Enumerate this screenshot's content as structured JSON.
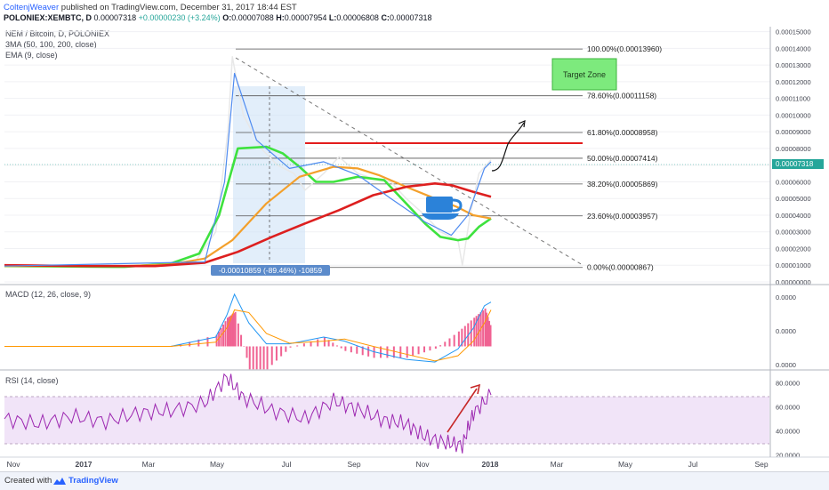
{
  "header": {
    "author": "ColtenjWeaver",
    "published_text": "published on TradingView.com, December 31, 2017 18:44 EST",
    "symbol": "POLONIEX:XEMBTC, D",
    "last": "0.00007318",
    "change": "+0.00000230 (+3.24%)",
    "o_label": "O:",
    "open": "0.00007088",
    "h_label": "H:",
    "high": "0.00007954",
    "l_label": "L:",
    "low": "0.00006808",
    "c_label": "C:",
    "close": "0.00007318"
  },
  "panes": {
    "price": {
      "title": "NEM / Bitcoin, D, POLONIEX",
      "indicator1": "3MA (50, 100, 200, close)",
      "indicator2": "EMA (9, close)"
    },
    "macd": {
      "title": "MACD (12, 26, close, 9)"
    },
    "rsi": {
      "title": "RSI (14, close)"
    }
  },
  "annotations": {
    "target_zone": "Target Zone",
    "measure_label": "-0.00010859 (-89.46%) -10859",
    "fib_levels": [
      {
        "label": "100.00%(0.00013960)",
        "value": 0.0001396
      },
      {
        "label": "78.60%(0.00011158)",
        "value": 0.00011158
      },
      {
        "label": "61.80%(0.00008958)",
        "value": 8.958e-05
      },
      {
        "label": "50.00%(0.00007414)",
        "value": 7.414e-05
      },
      {
        "label": "38.20%(0.00005869)",
        "value": 5.869e-05
      },
      {
        "label": "23.60%(0.00003957)",
        "value": 3.957e-05
      },
      {
        "label": "0.00%(0.00000867)",
        "value": 8.67e-06
      }
    ],
    "current_price_tag": "0.00007318"
  },
  "chart_data": [
    {
      "type": "line",
      "pane": "price",
      "y_ticks": [
        "0.00015000",
        "0.00014000",
        "0.00013000",
        "0.00012000",
        "0.00011000",
        "0.00010000",
        "0.00009000",
        "0.00008000",
        "0.00007000",
        "0.00006000",
        "0.00005000",
        "0.00004000",
        "0.00003000",
        "0.00002000",
        "0.00001000",
        "0.00000000"
      ],
      "ylim": [
        0.0,
        0.000153
      ],
      "x_ticks": [
        "Nov",
        "2017",
        "Mar",
        "May",
        "Jul",
        "Sep",
        "Nov",
        "2018",
        "Mar",
        "May",
        "Jul",
        "Sep"
      ],
      "series": [
        {
          "color": "#e8e8e8",
          "x": [
            "2016-10-15",
            "2016-12-01",
            "2017-02-01",
            "2017-03-10",
            "2017-04-05",
            "2017-04-25",
            "2017-05-06",
            "2017-05-10",
            "2017-05-20",
            "2017-06-05",
            "2017-06-20",
            "2017-07-05",
            "2017-07-15",
            "2017-08-01",
            "2017-08-15",
            "2017-09-01",
            "2017-09-15",
            "2017-10-01",
            "2017-10-15",
            "2017-11-01",
            "2017-11-15",
            "2017-11-25",
            "2017-12-01",
            "2017-12-05",
            "2017-12-12",
            "2017-12-20",
            "2017-12-31"
          ],
          "y": [
            9.5e-06,
            9.5e-06,
            9.5e-06,
            9.5e-06,
            1.1e-05,
            3e-05,
            9e-05,
            0.000135,
            0.0001,
            8e-05,
            7e-05,
            6.5e-05,
            5.5e-05,
            6.5e-05,
            7.5e-05,
            6.5e-05,
            6.2e-05,
            6e-05,
            5e-05,
            4e-05,
            3e-05,
            2.7e-05,
            2.5e-05,
            1e-05,
            4e-05,
            6.5e-05,
            7.318e-05
          ]
        },
        {
          "color": "#3ee23e",
          "x": [
            "2016-10-15",
            "2017-02-01",
            "2017-03-15",
            "2017-04-10",
            "2017-04-28",
            "2017-05-15",
            "2017-06-10",
            "2017-06-25",
            "2017-07-10",
            "2017-07-25",
            "2017-08-10",
            "2017-09-01",
            "2017-09-25",
            "2017-10-15",
            "2017-11-01",
            "2017-11-15",
            "2017-12-01",
            "2017-12-10",
            "2017-12-20",
            "2017-12-31"
          ],
          "y": [
            9.5e-06,
            9e-06,
            1.1e-05,
            1.7e-05,
            4e-05,
            8e-05,
            8.1e-05,
            7.7e-05,
            6.9e-05,
            6e-05,
            6e-05,
            6.3e-05,
            6.1e-05,
            4.7e-05,
            3.5e-05,
            2.7e-05,
            2.5e-05,
            2.6e-05,
            3.3e-05,
            3.8e-05
          ]
        },
        {
          "color": "#f3a02c",
          "x": [
            "2016-10-15",
            "2017-02-01",
            "2017-03-15",
            "2017-04-15",
            "2017-05-10",
            "2017-06-10",
            "2017-07-10",
            "2017-08-10",
            "2017-09-01",
            "2017-09-20",
            "2017-10-15",
            "2017-11-10",
            "2017-11-30",
            "2017-12-15",
            "2017-12-31"
          ],
          "y": [
            9.5e-06,
            9.5e-06,
            1.05e-05,
            1.4e-05,
            2.5e-05,
            4.7e-05,
            6.3e-05,
            6.9e-05,
            6.8e-05,
            6.4e-05,
            5.7e-05,
            5e-05,
            4.5e-05,
            4e-05,
            3.8e-05
          ]
        },
        {
          "color": "#dd1f1f",
          "x": [
            "2016-10-15",
            "2017-01-01",
            "2017-03-01",
            "2017-04-15",
            "2017-05-15",
            "2017-06-15",
            "2017-07-15",
            "2017-08-15",
            "2017-09-15",
            "2017-10-15",
            "2017-11-10",
            "2017-11-25",
            "2017-12-15",
            "2017-12-31"
          ],
          "y": [
            1e-05,
            9.5e-06,
            9.5e-06,
            1.15e-05,
            1.8e-05,
            2.7e-05,
            3.5e-05,
            4.3e-05,
            5.2e-05,
            5.7e-05,
            5.9e-05,
            5.8e-05,
            5.4e-05,
            5.1e-05
          ]
        },
        {
          "color": "#4f8bf0",
          "x": [
            "2016-10-15",
            "2017-04-15",
            "2017-05-03",
            "2017-05-12",
            "2017-06-01",
            "2017-07-01",
            "2017-08-01",
            "2017-09-01",
            "2017-10-01",
            "2017-11-01",
            "2017-11-25",
            "2017-12-10",
            "2017-12-25",
            "2017-12-31"
          ],
          "y": [
            9.5e-06,
            1.2e-05,
            6e-05,
            0.000125,
            8.5e-05,
            6.8e-05,
            7.2e-05,
            6.4e-05,
            5e-05,
            3.6e-05,
            2.8e-05,
            4e-05,
            6.8e-05,
            7.2e-05
          ]
        }
      ]
    },
    {
      "type": "line",
      "pane": "macd",
      "y_ticks": [
        "0.0000",
        "0.0000",
        "0.0000"
      ],
      "x": [
        "2016-10-15",
        "2017-03-15",
        "2017-04-25",
        "2017-05-05",
        "2017-05-12",
        "2017-05-25",
        "2017-06-10",
        "2017-07-01",
        "2017-08-01",
        "2017-08-20",
        "2017-09-15",
        "2017-10-15",
        "2017-11-10",
        "2017-12-01",
        "2017-12-15",
        "2017-12-25",
        "2017-12-31"
      ],
      "series": [
        {
          "color": "#2196f3",
          "values": [
            0,
            0,
            0.18,
            0.6,
            1.0,
            0.45,
            0.05,
            0.05,
            0.18,
            0.1,
            -0.1,
            -0.25,
            -0.3,
            -0.05,
            0.35,
            0.78,
            0.85
          ]
        },
        {
          "color": "#ff9800",
          "values": [
            0,
            0,
            0.08,
            0.35,
            0.7,
            0.65,
            0.25,
            0.06,
            0.1,
            0.14,
            0.0,
            -0.15,
            -0.28,
            -0.18,
            0.1,
            0.45,
            0.7
          ]
        }
      ]
    },
    {
      "type": "line",
      "pane": "rsi",
      "y_ticks": [
        "80.0000",
        "60.0000",
        "40.0000",
        "20.0000"
      ],
      "ylim": [
        18,
        88
      ],
      "x": [
        "2016-10-15",
        "2016-11-15",
        "2016-12-15",
        "2017-01-15",
        "2017-02-15",
        "2017-03-15",
        "2017-04-15",
        "2017-05-05",
        "2017-05-20",
        "2017-06-15",
        "2017-07-15",
        "2017-08-10",
        "2017-09-01",
        "2017-09-25",
        "2017-10-15",
        "2017-11-01",
        "2017-11-20",
        "2017-12-05",
        "2017-12-15",
        "2017-12-31"
      ],
      "series": [
        {
          "color": "#9c27b0",
          "values": [
            50,
            46,
            52,
            48,
            55,
            57,
            63,
            85,
            68,
            57,
            50,
            65,
            58,
            49,
            46,
            35,
            30,
            28,
            55,
            70
          ]
        }
      ]
    }
  ]
}
